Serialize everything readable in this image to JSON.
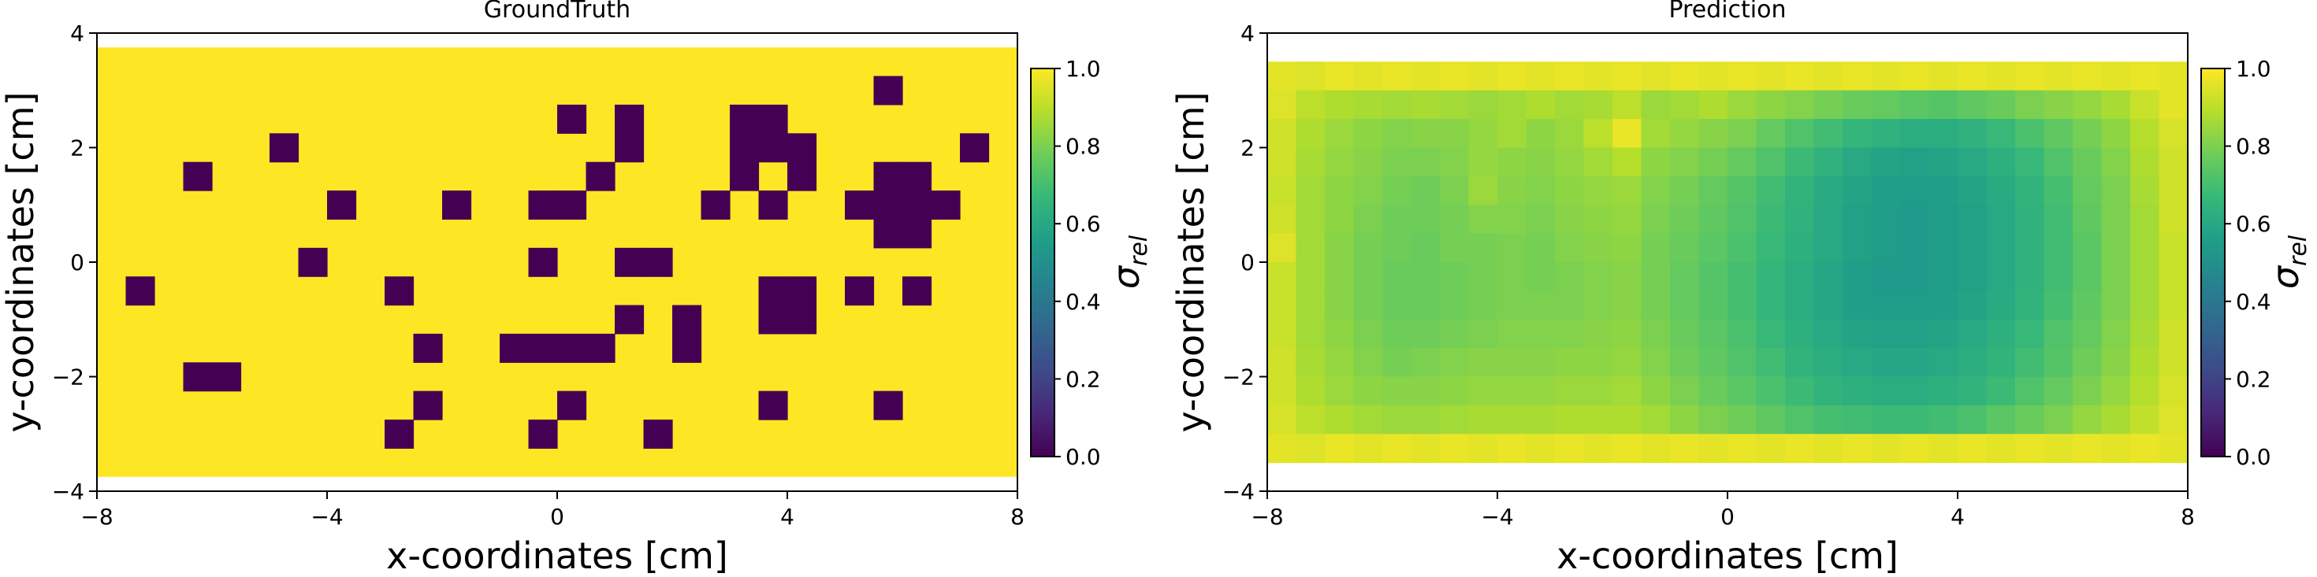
{
  "chart_data": [
    {
      "type": "heatmap",
      "title": "GroundTruth",
      "xlabel": "x-coordinates [cm]",
      "ylabel": "y-coordinates [cm]",
      "xlim": [
        -8,
        8
      ],
      "ylim": [
        -4,
        4
      ],
      "xticks": [
        "−8",
        "−4",
        "0",
        "4",
        "8"
      ],
      "yticks": [
        "−4",
        "−2",
        "0",
        "2",
        "4"
      ],
      "x_centers": [
        -7.25,
        -6.75,
        -6.25,
        -5.75,
        -5.25,
        -4.75,
        -4.25,
        -3.75,
        -3.25,
        -2.75,
        -2.25,
        -1.75,
        -1.25,
        -0.75,
        -0.25,
        0.25,
        0.75,
        1.25,
        1.75,
        2.25,
        2.75,
        3.25,
        3.75,
        4.25,
        4.75,
        5.25,
        5.75,
        6.25,
        6.75,
        7.25
      ],
      "y_centers": [
        3.0,
        2.5,
        2.0,
        1.5,
        1.0,
        0.5,
        0.0,
        -0.5,
        -1.0,
        -1.5,
        -2.0,
        -2.5,
        -3.0
      ],
      "values": [
        [
          1,
          1,
          1,
          1,
          1,
          1,
          1,
          1,
          1,
          1,
          1,
          1,
          1,
          1,
          1,
          1,
          1,
          1,
          1,
          1,
          1,
          1,
          1,
          1,
          1,
          1,
          0,
          1,
          1,
          1
        ],
        [
          1,
          1,
          1,
          1,
          1,
          1,
          1,
          1,
          1,
          1,
          1,
          1,
          1,
          1,
          1,
          0,
          1,
          0,
          1,
          1,
          1,
          0,
          0,
          1,
          1,
          1,
          1,
          1,
          1,
          1
        ],
        [
          1,
          1,
          1,
          1,
          1,
          0,
          1,
          1,
          1,
          1,
          1,
          1,
          1,
          1,
          1,
          1,
          1,
          0,
          1,
          1,
          1,
          0,
          0,
          0,
          1,
          1,
          1,
          1,
          1,
          0
        ],
        [
          1,
          1,
          0,
          1,
          1,
          1,
          1,
          1,
          1,
          1,
          1,
          1,
          1,
          1,
          1,
          1,
          0,
          1,
          1,
          1,
          1,
          0,
          1,
          0,
          1,
          1,
          0,
          0,
          1,
          1
        ],
        [
          1,
          1,
          1,
          1,
          1,
          1,
          1,
          0,
          1,
          1,
          1,
          0,
          1,
          1,
          0,
          0,
          1,
          1,
          1,
          1,
          0,
          1,
          0,
          1,
          1,
          0,
          0,
          0,
          0,
          1
        ],
        [
          1,
          1,
          1,
          1,
          1,
          1,
          1,
          1,
          1,
          1,
          1,
          1,
          1,
          1,
          1,
          1,
          1,
          1,
          1,
          1,
          1,
          1,
          1,
          1,
          1,
          1,
          0,
          0,
          1,
          1
        ],
        [
          1,
          1,
          1,
          1,
          1,
          1,
          0,
          1,
          1,
          1,
          1,
          1,
          1,
          1,
          0,
          1,
          1,
          0,
          0,
          1,
          1,
          1,
          1,
          1,
          1,
          1,
          1,
          1,
          1,
          1
        ],
        [
          0,
          1,
          1,
          1,
          1,
          1,
          1,
          1,
          1,
          0,
          1,
          1,
          1,
          1,
          1,
          1,
          1,
          1,
          1,
          1,
          1,
          1,
          0,
          0,
          1,
          0,
          1,
          0,
          1,
          1
        ],
        [
          1,
          1,
          1,
          1,
          1,
          1,
          1,
          1,
          1,
          1,
          1,
          1,
          1,
          1,
          1,
          1,
          1,
          0,
          1,
          0,
          1,
          1,
          0,
          0,
          1,
          1,
          1,
          1,
          1,
          1
        ],
        [
          1,
          1,
          1,
          1,
          1,
          1,
          1,
          1,
          1,
          1,
          0,
          1,
          1,
          0,
          0,
          0,
          0,
          1,
          1,
          0,
          1,
          1,
          1,
          1,
          1,
          1,
          1,
          1,
          1,
          1
        ],
        [
          1,
          1,
          0,
          0,
          1,
          1,
          1,
          1,
          1,
          1,
          1,
          1,
          1,
          1,
          1,
          1,
          1,
          1,
          1,
          1,
          1,
          1,
          1,
          1,
          1,
          1,
          1,
          1,
          1,
          1
        ],
        [
          1,
          1,
          1,
          1,
          1,
          1,
          1,
          1,
          1,
          1,
          0,
          1,
          1,
          1,
          1,
          0,
          1,
          1,
          1,
          1,
          1,
          1,
          0,
          1,
          1,
          1,
          0,
          1,
          1,
          1
        ],
        [
          1,
          1,
          1,
          1,
          1,
          1,
          1,
          1,
          1,
          0,
          1,
          1,
          1,
          1,
          0,
          1,
          1,
          1,
          0,
          1,
          1,
          1,
          1,
          1,
          1,
          1,
          1,
          1,
          1,
          1
        ]
      ],
      "colorbar": {
        "label": "σ_rel",
        "range": [
          0,
          1
        ],
        "ticks": [
          "0.0",
          "0.2",
          "0.4",
          "0.6",
          "0.8",
          "1.0"
        ],
        "colormap": "viridis"
      },
      "grid": false
    },
    {
      "type": "heatmap",
      "title": "Prediction",
      "xlabel": "x-coordinates [cm]",
      "ylabel": "y-coordinates [cm]",
      "xlim": [
        -8,
        8
      ],
      "ylim": [
        -4,
        4
      ],
      "xticks": [
        "−8",
        "−4",
        "0",
        "4",
        "8"
      ],
      "yticks": [
        "−4",
        "−2",
        "0",
        "2",
        "4"
      ],
      "x_centers": [
        -7.75,
        -7.25,
        -6.75,
        -6.25,
        -5.75,
        -5.25,
        -4.75,
        -4.25,
        -3.75,
        -3.25,
        -2.75,
        -2.25,
        -1.75,
        -1.25,
        -0.75,
        -0.25,
        0.25,
        0.75,
        1.25,
        1.75,
        2.25,
        2.75,
        3.25,
        3.75,
        4.25,
        4.75,
        5.25,
        5.75,
        6.25,
        6.75,
        7.25,
        7.75
      ],
      "y_centers": [
        3.25,
        2.75,
        2.25,
        1.75,
        1.25,
        0.75,
        0.25,
        -0.25,
        -0.75,
        -1.25,
        -1.75,
        -2.25,
        -2.75,
        -3.25
      ],
      "values": [
        [
          0.96,
          0.95,
          0.97,
          0.96,
          0.97,
          0.96,
          0.97,
          0.96,
          0.97,
          0.96,
          0.97,
          0.96,
          0.97,
          0.96,
          0.97,
          0.96,
          0.97,
          0.96,
          0.97,
          0.96,
          0.97,
          0.96,
          0.97,
          0.96,
          0.97,
          0.96,
          0.97,
          0.96,
          0.97,
          0.96,
          0.97,
          0.96
        ],
        [
          0.95,
          0.9,
          0.88,
          0.87,
          0.86,
          0.87,
          0.86,
          0.85,
          0.86,
          0.88,
          0.86,
          0.87,
          0.9,
          0.85,
          0.86,
          0.88,
          0.85,
          0.83,
          0.81,
          0.79,
          0.77,
          0.76,
          0.74,
          0.73,
          0.75,
          0.77,
          0.8,
          0.82,
          0.84,
          0.87,
          0.92,
          0.96
        ],
        [
          0.93,
          0.88,
          0.85,
          0.83,
          0.81,
          0.82,
          0.82,
          0.84,
          0.86,
          0.83,
          0.85,
          0.9,
          0.97,
          0.86,
          0.84,
          0.82,
          0.8,
          0.76,
          0.72,
          0.69,
          0.66,
          0.64,
          0.62,
          0.62,
          0.64,
          0.67,
          0.71,
          0.75,
          0.79,
          0.83,
          0.89,
          0.94
        ],
        [
          0.93,
          0.87,
          0.84,
          0.82,
          0.8,
          0.8,
          0.81,
          0.84,
          0.83,
          0.82,
          0.84,
          0.86,
          0.89,
          0.83,
          0.81,
          0.79,
          0.76,
          0.72,
          0.68,
          0.64,
          0.6,
          0.58,
          0.57,
          0.58,
          0.6,
          0.63,
          0.67,
          0.72,
          0.77,
          0.81,
          0.88,
          0.93
        ],
        [
          0.92,
          0.86,
          0.83,
          0.81,
          0.79,
          0.78,
          0.8,
          0.85,
          0.82,
          0.81,
          0.83,
          0.84,
          0.85,
          0.81,
          0.79,
          0.76,
          0.73,
          0.69,
          0.65,
          0.61,
          0.58,
          0.56,
          0.55,
          0.56,
          0.58,
          0.61,
          0.65,
          0.7,
          0.76,
          0.8,
          0.87,
          0.93
        ],
        [
          0.93,
          0.86,
          0.83,
          0.8,
          0.78,
          0.78,
          0.79,
          0.81,
          0.81,
          0.8,
          0.82,
          0.83,
          0.84,
          0.8,
          0.78,
          0.75,
          0.72,
          0.68,
          0.64,
          0.6,
          0.57,
          0.55,
          0.54,
          0.55,
          0.57,
          0.6,
          0.64,
          0.69,
          0.75,
          0.8,
          0.86,
          0.93
        ],
        [
          0.95,
          0.86,
          0.82,
          0.79,
          0.78,
          0.77,
          0.79,
          0.79,
          0.8,
          0.79,
          0.81,
          0.82,
          0.83,
          0.79,
          0.77,
          0.74,
          0.71,
          0.67,
          0.63,
          0.6,
          0.57,
          0.55,
          0.54,
          0.55,
          0.57,
          0.6,
          0.64,
          0.69,
          0.74,
          0.8,
          0.86,
          0.92
        ],
        [
          0.92,
          0.86,
          0.82,
          0.79,
          0.77,
          0.77,
          0.78,
          0.79,
          0.8,
          0.79,
          0.8,
          0.81,
          0.82,
          0.79,
          0.76,
          0.73,
          0.7,
          0.66,
          0.62,
          0.59,
          0.56,
          0.54,
          0.54,
          0.55,
          0.57,
          0.6,
          0.64,
          0.69,
          0.74,
          0.8,
          0.86,
          0.92
        ],
        [
          0.92,
          0.86,
          0.82,
          0.79,
          0.77,
          0.77,
          0.78,
          0.79,
          0.8,
          0.8,
          0.8,
          0.81,
          0.82,
          0.79,
          0.76,
          0.73,
          0.7,
          0.66,
          0.62,
          0.59,
          0.56,
          0.55,
          0.55,
          0.56,
          0.58,
          0.61,
          0.65,
          0.7,
          0.75,
          0.8,
          0.86,
          0.92
        ],
        [
          0.92,
          0.86,
          0.83,
          0.8,
          0.78,
          0.78,
          0.79,
          0.8,
          0.81,
          0.81,
          0.81,
          0.82,
          0.83,
          0.8,
          0.77,
          0.74,
          0.71,
          0.67,
          0.63,
          0.6,
          0.58,
          0.57,
          0.57,
          0.58,
          0.6,
          0.63,
          0.67,
          0.72,
          0.76,
          0.81,
          0.87,
          0.93
        ],
        [
          0.93,
          0.87,
          0.84,
          0.81,
          0.79,
          0.8,
          0.81,
          0.82,
          0.82,
          0.82,
          0.83,
          0.83,
          0.84,
          0.81,
          0.78,
          0.75,
          0.72,
          0.69,
          0.65,
          0.62,
          0.6,
          0.59,
          0.59,
          0.6,
          0.62,
          0.65,
          0.69,
          0.73,
          0.78,
          0.82,
          0.88,
          0.93
        ],
        [
          0.93,
          0.88,
          0.85,
          0.83,
          0.82,
          0.82,
          0.83,
          0.84,
          0.84,
          0.84,
          0.85,
          0.85,
          0.86,
          0.83,
          0.8,
          0.77,
          0.74,
          0.71,
          0.68,
          0.65,
          0.63,
          0.62,
          0.62,
          0.63,
          0.65,
          0.68,
          0.72,
          0.76,
          0.8,
          0.84,
          0.89,
          0.94
        ],
        [
          0.94,
          0.9,
          0.88,
          0.86,
          0.85,
          0.85,
          0.86,
          0.87,
          0.87,
          0.87,
          0.88,
          0.88,
          0.88,
          0.86,
          0.83,
          0.8,
          0.78,
          0.75,
          0.72,
          0.7,
          0.69,
          0.68,
          0.68,
          0.69,
          0.71,
          0.74,
          0.77,
          0.8,
          0.84,
          0.87,
          0.91,
          0.95
        ],
        [
          0.96,
          0.95,
          0.97,
          0.96,
          0.97,
          0.96,
          0.97,
          0.96,
          0.97,
          0.96,
          0.97,
          0.96,
          0.97,
          0.96,
          0.97,
          0.96,
          0.97,
          0.96,
          0.97,
          0.96,
          0.97,
          0.96,
          0.97,
          0.96,
          0.97,
          0.96,
          0.97,
          0.96,
          0.97,
          0.96,
          0.97,
          0.96
        ]
      ],
      "colorbar": {
        "label": "σ_rel",
        "range": [
          0,
          1
        ],
        "ticks": [
          "0.0",
          "0.2",
          "0.4",
          "0.6",
          "0.8",
          "1.0"
        ],
        "colormap": "viridis"
      },
      "grid": false
    }
  ]
}
